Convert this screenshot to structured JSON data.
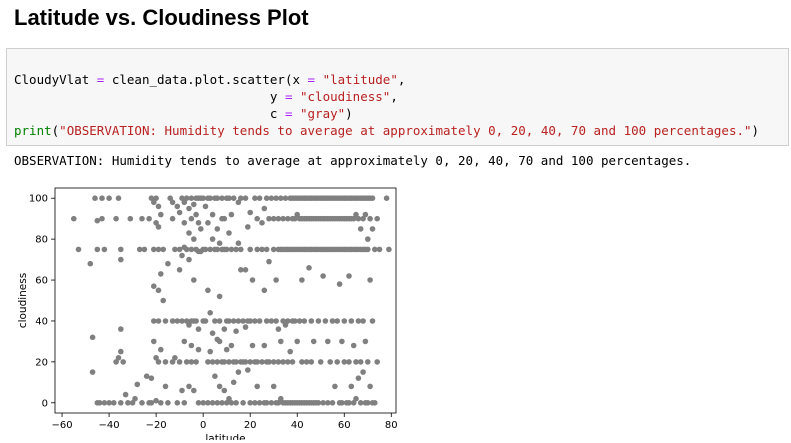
{
  "heading": "Latitude vs. Cloudiness Plot",
  "code_lines": {
    "l1a": "CloudyVlat ",
    "l1b": "=",
    "l1c": " clean_data.plot.scatter(x ",
    "l1d": "=",
    "l1e": " ",
    "l1f": "\"latitude\"",
    "l1g": ",",
    "l2a": "                                  y ",
    "l2b": "=",
    "l2c": " ",
    "l2d": "\"cloudiness\"",
    "l2e": ",",
    "l3a": "                                  c ",
    "l3b": "=",
    "l3c": " ",
    "l3d": "\"gray\"",
    "l3e": ")",
    "l4a": "print",
    "l4b": "(",
    "l4c": "\"OBSERVATION: Humidity tends to average at approximately 0, 20, 40, 70 and 100 percentages.\"",
    "l4d": ")"
  },
  "output_text": "OBSERVATION: Humidity tends to average at approximately 0, 20, 40, 70 and 100 percentages.",
  "chart_data": {
    "type": "scatter",
    "title": "",
    "xlabel": "latitude",
    "ylabel": "cloudiness",
    "xlim": [
      -63,
      82
    ],
    "ylim": [
      -5,
      105
    ],
    "xticks": [
      -60,
      -40,
      -20,
      0,
      20,
      40,
      60,
      80
    ],
    "yticks": [
      0,
      20,
      40,
      60,
      80,
      100
    ],
    "grid": false,
    "point_color": "#808080",
    "points": [
      [
        -55,
        90
      ],
      [
        -53,
        75
      ],
      [
        -48,
        68
      ],
      [
        -47,
        32
      ],
      [
        -47,
        15
      ],
      [
        -46,
        100
      ],
      [
        -45,
        89
      ],
      [
        -45,
        75
      ],
      [
        -45,
        0
      ],
      [
        -44,
        0
      ],
      [
        -43,
        100
      ],
      [
        -43,
        90
      ],
      [
        -42,
        75
      ],
      [
        -42,
        0
      ],
      [
        -40,
        100
      ],
      [
        -40,
        0
      ],
      [
        -38,
        0
      ],
      [
        -37,
        90
      ],
      [
        -37,
        20
      ],
      [
        -36,
        100
      ],
      [
        -36,
        22
      ],
      [
        -35,
        75
      ],
      [
        -35,
        70
      ],
      [
        -35,
        36
      ],
      [
        -35,
        25
      ],
      [
        -35,
        0
      ],
      [
        -34,
        20
      ],
      [
        -33,
        4
      ],
      [
        -32,
        0
      ],
      [
        -31,
        90
      ],
      [
        -30,
        0
      ],
      [
        -29,
        2
      ],
      [
        -28,
        9
      ],
      [
        -27,
        75
      ],
      [
        -26,
        90
      ],
      [
        -26,
        0
      ],
      [
        -25,
        75
      ],
      [
        -24,
        13
      ],
      [
        -23,
        90
      ],
      [
        -23,
        0
      ],
      [
        -22,
        100
      ],
      [
        -22,
        12
      ],
      [
        -22,
        0
      ],
      [
        -21,
        98
      ],
      [
        -21,
        75
      ],
      [
        -21,
        57
      ],
      [
        -21,
        40
      ],
      [
        -21,
        30
      ],
      [
        -20,
        100
      ],
      [
        -20,
        88
      ],
      [
        -20,
        22
      ],
      [
        -20,
        1
      ],
      [
        -19,
        96
      ],
      [
        -19,
        86
      ],
      [
        -19,
        75
      ],
      [
        -19,
        55
      ],
      [
        -19,
        40
      ],
      [
        -19,
        20
      ],
      [
        -18,
        92
      ],
      [
        -18,
        63
      ],
      [
        -18,
        26
      ],
      [
        -18,
        0
      ],
      [
        -17,
        75
      ],
      [
        -17,
        50
      ],
      [
        -16,
        40
      ],
      [
        -16,
        20
      ],
      [
        -16,
        8
      ],
      [
        -15,
        68
      ],
      [
        -15,
        0
      ],
      [
        -14,
        100
      ],
      [
        -13,
        98
      ],
      [
        -13,
        90
      ],
      [
        -13,
        40
      ],
      [
        -13,
        20
      ],
      [
        -12,
        75
      ],
      [
        -12,
        22
      ],
      [
        -11,
        96
      ],
      [
        -11,
        40
      ],
      [
        -11,
        0
      ],
      [
        -10,
        93
      ],
      [
        -10,
        75
      ],
      [
        -10,
        65
      ],
      [
        -10,
        20
      ],
      [
        -9,
        100
      ],
      [
        -9,
        72
      ],
      [
        -9,
        40
      ],
      [
        -9,
        6
      ],
      [
        -8,
        98
      ],
      [
        -8,
        88
      ],
      [
        -8,
        76
      ],
      [
        -8,
        30
      ],
      [
        -8,
        0
      ],
      [
        -7,
        100
      ],
      [
        -7,
        75
      ],
      [
        -7,
        40
      ],
      [
        -7,
        20
      ],
      [
        -6,
        95
      ],
      [
        -6,
        83
      ],
      [
        -6,
        70
      ],
      [
        -6,
        38
      ],
      [
        -6,
        8
      ],
      [
        -5,
        100
      ],
      [
        -5,
        90
      ],
      [
        -5,
        75
      ],
      [
        -5,
        40
      ],
      [
        -5,
        28
      ],
      [
        -5,
        20
      ],
      [
        -4,
        97
      ],
      [
        -4,
        80
      ],
      [
        -4,
        60
      ],
      [
        -4,
        40
      ],
      [
        -4,
        6
      ],
      [
        -3,
        100
      ],
      [
        -3,
        92
      ],
      [
        -3,
        75
      ],
      [
        -3,
        40
      ],
      [
        -3,
        20
      ],
      [
        -2,
        100
      ],
      [
        -2,
        88
      ],
      [
        -2,
        74
      ],
      [
        -2,
        36
      ],
      [
        -2,
        26
      ],
      [
        -2,
        0
      ],
      [
        -1,
        100
      ],
      [
        -1,
        85
      ],
      [
        -1,
        74
      ],
      [
        0,
        100
      ],
      [
        0,
        75
      ],
      [
        0,
        40
      ],
      [
        0,
        0
      ],
      [
        1,
        96
      ],
      [
        1,
        75
      ],
      [
        1,
        40
      ],
      [
        2,
        100
      ],
      [
        2,
        88
      ],
      [
        2,
        55
      ],
      [
        2,
        20
      ],
      [
        2,
        0
      ],
      [
        3,
        100
      ],
      [
        3,
        75
      ],
      [
        3,
        44
      ],
      [
        3,
        25
      ],
      [
        4,
        92
      ],
      [
        4,
        80
      ],
      [
        4,
        34
      ],
      [
        4,
        20
      ],
      [
        4,
        0
      ],
      [
        5,
        100
      ],
      [
        5,
        75
      ],
      [
        5,
        40
      ],
      [
        5,
        13
      ],
      [
        6,
        100
      ],
      [
        6,
        85
      ],
      [
        6,
        75
      ],
      [
        6,
        31
      ],
      [
        6,
        20
      ],
      [
        6,
        0
      ],
      [
        7,
        78
      ],
      [
        7,
        52
      ],
      [
        7,
        40
      ],
      [
        7,
        30
      ],
      [
        7,
        8
      ],
      [
        8,
        100
      ],
      [
        8,
        90
      ],
      [
        8,
        75
      ],
      [
        8,
        20
      ],
      [
        8,
        0
      ],
      [
        9,
        90
      ],
      [
        9,
        75
      ],
      [
        9,
        36
      ],
      [
        9,
        20
      ],
      [
        9,
        6
      ],
      [
        10,
        100
      ],
      [
        10,
        75
      ],
      [
        10,
        40
      ],
      [
        10,
        26
      ],
      [
        10,
        0
      ],
      [
        11,
        100
      ],
      [
        11,
        83
      ],
      [
        11,
        40
      ],
      [
        11,
        20
      ],
      [
        11,
        2
      ],
      [
        12,
        92
      ],
      [
        12,
        75
      ],
      [
        12,
        28
      ],
      [
        12,
        0
      ],
      [
        13,
        100
      ],
      [
        13,
        40
      ],
      [
        13,
        20
      ],
      [
        13,
        10
      ],
      [
        14,
        75
      ],
      [
        14,
        35
      ],
      [
        14,
        20
      ],
      [
        14,
        0
      ],
      [
        15,
        98
      ],
      [
        15,
        78
      ],
      [
        15,
        40
      ],
      [
        15,
        15
      ],
      [
        16,
        100
      ],
      [
        16,
        75
      ],
      [
        16,
        65
      ],
      [
        16,
        20
      ],
      [
        17,
        40
      ],
      [
        17,
        20
      ],
      [
        17,
        0
      ],
      [
        18,
        100
      ],
      [
        18,
        65
      ],
      [
        18,
        37
      ],
      [
        18,
        20
      ],
      [
        19,
        86
      ],
      [
        19,
        40
      ],
      [
        19,
        16
      ],
      [
        20,
        93
      ],
      [
        20,
        75
      ],
      [
        20,
        40
      ],
      [
        20,
        20
      ],
      [
        20,
        0
      ],
      [
        21,
        60
      ],
      [
        21,
        28
      ],
      [
        22,
        100
      ],
      [
        22,
        40
      ],
      [
        22,
        20
      ],
      [
        22,
        0
      ],
      [
        23,
        90
      ],
      [
        23,
        75
      ],
      [
        23,
        20
      ],
      [
        23,
        8
      ],
      [
        24,
        100
      ],
      [
        24,
        40
      ],
      [
        24,
        0
      ],
      [
        25,
        88
      ],
      [
        25,
        75
      ],
      [
        25,
        20
      ],
      [
        26,
        95
      ],
      [
        26,
        55
      ],
      [
        26,
        28
      ],
      [
        26,
        0
      ],
      [
        27,
        100
      ],
      [
        27,
        75
      ],
      [
        27,
        40
      ],
      [
        27,
        20
      ],
      [
        27,
        0
      ],
      [
        28,
        90
      ],
      [
        28,
        69
      ],
      [
        28,
        20
      ],
      [
        29,
        100
      ],
      [
        29,
        40
      ],
      [
        29,
        0
      ],
      [
        30,
        90
      ],
      [
        30,
        75
      ],
      [
        30,
        20
      ],
      [
        30,
        8
      ],
      [
        31,
        100
      ],
      [
        31,
        60
      ],
      [
        31,
        40
      ],
      [
        31,
        0
      ],
      [
        32,
        90
      ],
      [
        32,
        75
      ],
      [
        32,
        36
      ],
      [
        32,
        20
      ],
      [
        32,
        0
      ],
      [
        33,
        100
      ],
      [
        33,
        75
      ],
      [
        33,
        30
      ],
      [
        33,
        2
      ],
      [
        34,
        90
      ],
      [
        34,
        75
      ],
      [
        34,
        40
      ],
      [
        34,
        20
      ],
      [
        34,
        0
      ],
      [
        35,
        100
      ],
      [
        35,
        75
      ],
      [
        35,
        38
      ],
      [
        35,
        0
      ],
      [
        36,
        90
      ],
      [
        36,
        75
      ],
      [
        36,
        40
      ],
      [
        36,
        20
      ],
      [
        36,
        0
      ],
      [
        37,
        100
      ],
      [
        37,
        75
      ],
      [
        37,
        25
      ],
      [
        37,
        0
      ],
      [
        38,
        100
      ],
      [
        38,
        90
      ],
      [
        38,
        75
      ],
      [
        38,
        40
      ],
      [
        38,
        20
      ],
      [
        38,
        0
      ],
      [
        39,
        100
      ],
      [
        39,
        90
      ],
      [
        39,
        75
      ],
      [
        39,
        40
      ],
      [
        39,
        0
      ],
      [
        40,
        100
      ],
      [
        40,
        92
      ],
      [
        40,
        75
      ],
      [
        40,
        30
      ],
      [
        40,
        0
      ],
      [
        41,
        100
      ],
      [
        41,
        90
      ],
      [
        41,
        75
      ],
      [
        41,
        40
      ],
      [
        41,
        0
      ],
      [
        42,
        100
      ],
      [
        42,
        90
      ],
      [
        42,
        75
      ],
      [
        42,
        60
      ],
      [
        42,
        20
      ],
      [
        42,
        0
      ],
      [
        43,
        100
      ],
      [
        43,
        90
      ],
      [
        43,
        75
      ],
      [
        43,
        40
      ],
      [
        43,
        0
      ],
      [
        44,
        100
      ],
      [
        44,
        90
      ],
      [
        44,
        75
      ],
      [
        44,
        20
      ],
      [
        44,
        0
      ],
      [
        45,
        100
      ],
      [
        45,
        90
      ],
      [
        45,
        75
      ],
      [
        45,
        66
      ],
      [
        45,
        0
      ],
      [
        46,
        100
      ],
      [
        46,
        90
      ],
      [
        46,
        75
      ],
      [
        46,
        40
      ],
      [
        46,
        20
      ],
      [
        46,
        0
      ],
      [
        47,
        100
      ],
      [
        47,
        90
      ],
      [
        47,
        75
      ],
      [
        47,
        30
      ],
      [
        47,
        0
      ],
      [
        48,
        100
      ],
      [
        48,
        90
      ],
      [
        48,
        75
      ],
      [
        48,
        0
      ],
      [
        49,
        100
      ],
      [
        49,
        90
      ],
      [
        49,
        75
      ],
      [
        49,
        40
      ],
      [
        49,
        0
      ],
      [
        50,
        100
      ],
      [
        50,
        90
      ],
      [
        50,
        75
      ],
      [
        50,
        20
      ],
      [
        51,
        100
      ],
      [
        51,
        90
      ],
      [
        51,
        75
      ],
      [
        51,
        62
      ],
      [
        51,
        0
      ],
      [
        52,
        100
      ],
      [
        52,
        90
      ],
      [
        52,
        75
      ],
      [
        52,
        40
      ],
      [
        53,
        100
      ],
      [
        53,
        90
      ],
      [
        53,
        75
      ],
      [
        53,
        30
      ],
      [
        53,
        0
      ],
      [
        54,
        100
      ],
      [
        54,
        90
      ],
      [
        54,
        75
      ],
      [
        54,
        20
      ],
      [
        55,
        100
      ],
      [
        55,
        90
      ],
      [
        55,
        75
      ],
      [
        55,
        40
      ],
      [
        55,
        0
      ],
      [
        56,
        100
      ],
      [
        56,
        90
      ],
      [
        56,
        75
      ],
      [
        56,
        8
      ],
      [
        57,
        100
      ],
      [
        57,
        90
      ],
      [
        57,
        75
      ],
      [
        57,
        40
      ],
      [
        57,
        20
      ],
      [
        58,
        100
      ],
      [
        58,
        90
      ],
      [
        58,
        75
      ],
      [
        58,
        58
      ],
      [
        58,
        0
      ],
      [
        59,
        100
      ],
      [
        59,
        90
      ],
      [
        59,
        75
      ],
      [
        59,
        30
      ],
      [
        59,
        0
      ],
      [
        60,
        100
      ],
      [
        60,
        90
      ],
      [
        60,
        75
      ],
      [
        60,
        40
      ],
      [
        60,
        20
      ],
      [
        61,
        100
      ],
      [
        61,
        90
      ],
      [
        61,
        75
      ],
      [
        61,
        0
      ],
      [
        62,
        100
      ],
      [
        62,
        90
      ],
      [
        62,
        75
      ],
      [
        62,
        62
      ],
      [
        62,
        20
      ],
      [
        62,
        0
      ],
      [
        63,
        100
      ],
      [
        63,
        90
      ],
      [
        63,
        75
      ],
      [
        63,
        40
      ],
      [
        63,
        8
      ],
      [
        64,
        100
      ],
      [
        64,
        90
      ],
      [
        64,
        75
      ],
      [
        64,
        28
      ],
      [
        64,
        0
      ],
      [
        65,
        100
      ],
      [
        65,
        92
      ],
      [
        65,
        75
      ],
      [
        65,
        20
      ],
      [
        65,
        2
      ],
      [
        66,
        100
      ],
      [
        66,
        90
      ],
      [
        66,
        75
      ],
      [
        66,
        40
      ],
      [
        66,
        12
      ],
      [
        67,
        100
      ],
      [
        67,
        85
      ],
      [
        67,
        75
      ],
      [
        67,
        20
      ],
      [
        67,
        0
      ],
      [
        68,
        100
      ],
      [
        68,
        90
      ],
      [
        68,
        75
      ],
      [
        68,
        40
      ],
      [
        68,
        15
      ],
      [
        69,
        100
      ],
      [
        69,
        92
      ],
      [
        69,
        75
      ],
      [
        69,
        30
      ],
      [
        69,
        0
      ],
      [
        70,
        100
      ],
      [
        70,
        80
      ],
      [
        70,
        75
      ],
      [
        70,
        20
      ],
      [
        70,
        0
      ],
      [
        71,
        100
      ],
      [
        71,
        90
      ],
      [
        71,
        60
      ],
      [
        71,
        8
      ],
      [
        72,
        100
      ],
      [
        72,
        85
      ],
      [
        72,
        40
      ],
      [
        72,
        0
      ],
      [
        73,
        75
      ],
      [
        73,
        0
      ],
      [
        74,
        90
      ],
      [
        74,
        20
      ],
      [
        75,
        75
      ],
      [
        78,
        100
      ],
      [
        79,
        75
      ]
    ]
  }
}
